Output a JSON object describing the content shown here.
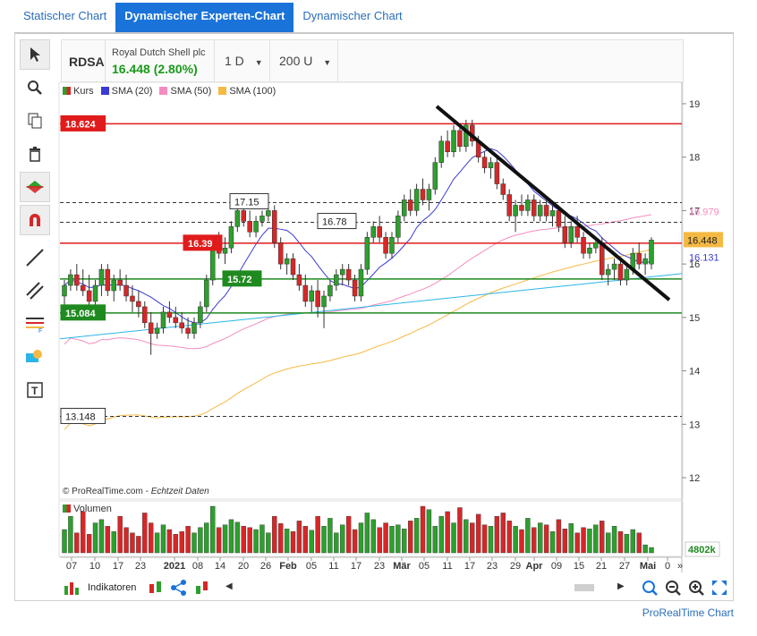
{
  "tabs": [
    {
      "label": "Statischer Chart",
      "active": false
    },
    {
      "label": "Dynamischer Experten-Chart",
      "active": true
    },
    {
      "label": "Dynamischer Chart",
      "active": false
    }
  ],
  "header": {
    "symbol": "RDSA",
    "company": "Royal Dutch Shell plc",
    "price_change": "16.448 (2.80%)",
    "interval": "1 D",
    "units": "200 U"
  },
  "legend": [
    {
      "label": "Kurs",
      "color": "#2ca02c"
    },
    {
      "label": "SMA (20)",
      "color": "#3a3ad4"
    },
    {
      "label": "SMA (50)",
      "color": "#f48cc0"
    },
    {
      "label": "SMA (100)",
      "color": "#f5b942"
    }
  ],
  "credit": {
    "text": "© ProRealTime.com - ",
    "italic": "Echtzeit Daten"
  },
  "volume_label": "Volumen",
  "volume_value": "4802k",
  "bottom": {
    "indicators_label": "Indikatoren"
  },
  "footer": "ProRealTime Chart",
  "colors": {
    "up": "#2ca02c",
    "down": "#d62728",
    "sma20": "#3a3ad4",
    "sma50": "#f48cc0",
    "sma100": "#f5b942",
    "trend": "#2bb5e8"
  },
  "chart_data": {
    "type": "candlestick",
    "y_ticks": [
      12,
      13,
      14,
      15,
      16,
      17,
      18,
      19
    ],
    "x_ticks": [
      "07",
      "10",
      "17",
      "23",
      "2021",
      "08",
      "14",
      "20",
      "26",
      "Feb",
      "05",
      "11",
      "17",
      "23",
      "Mär",
      "05",
      "11",
      "17",
      "23",
      "29",
      "Apr",
      "09",
      "15",
      "21",
      "27",
      "Mai",
      "0"
    ],
    "horizontal_levels": [
      {
        "label": "18.624",
        "value": 18.624,
        "style": "solid",
        "color": "#e01b1b"
      },
      {
        "label": "17.15",
        "value": 17.15,
        "style": "dashed",
        "color": "#333333"
      },
      {
        "label": "16.78",
        "value": 16.78,
        "style": "dashed",
        "color": "#333333"
      },
      {
        "label": "16.39",
        "value": 16.39,
        "style": "solid",
        "color": "#e01b1b"
      },
      {
        "label": "15.72",
        "value": 15.72,
        "style": "solid",
        "color": "#1f8a1f"
      },
      {
        "label": "15.084",
        "value": 15.084,
        "style": "solid",
        "color": "#1f8a1f"
      },
      {
        "label": "13.148",
        "value": 13.148,
        "style": "dashed",
        "color": "#333333"
      }
    ],
    "right_labels": [
      {
        "label": "16.979",
        "value": 16.979
      },
      {
        "label": "16.448",
        "value": 16.448
      },
      {
        "label": "16.131",
        "value": 16.131
      }
    ],
    "candles": [
      [
        15.4,
        15.7,
        15.2,
        15.6
      ],
      [
        15.6,
        15.9,
        15.5,
        15.8
      ],
      [
        15.8,
        16.0,
        15.5,
        15.6
      ],
      [
        15.6,
        15.9,
        15.4,
        15.5
      ],
      [
        15.5,
        15.8,
        15.2,
        15.3
      ],
      [
        15.3,
        15.7,
        15.2,
        15.6
      ],
      [
        15.6,
        16.0,
        15.4,
        15.9
      ],
      [
        15.9,
        16.0,
        15.4,
        15.5
      ],
      [
        15.5,
        15.8,
        15.3,
        15.7
      ],
      [
        15.7,
        15.9,
        15.5,
        15.6
      ],
      [
        15.6,
        15.8,
        15.3,
        15.4
      ],
      [
        15.4,
        15.6,
        15.1,
        15.3
      ],
      [
        15.3,
        15.5,
        15.0,
        15.2
      ],
      [
        15.2,
        15.3,
        14.8,
        14.9
      ],
      [
        14.9,
        15.1,
        14.3,
        14.7
      ],
      [
        14.7,
        14.9,
        14.6,
        14.8
      ],
      [
        14.8,
        15.2,
        14.7,
        15.1
      ],
      [
        15.1,
        15.3,
        14.9,
        15.0
      ],
      [
        15.0,
        15.2,
        14.8,
        14.9
      ],
      [
        14.9,
        15.1,
        14.7,
        14.8
      ],
      [
        14.8,
        15.0,
        14.6,
        14.7
      ],
      [
        14.7,
        15.0,
        14.6,
        14.9
      ],
      [
        14.9,
        15.3,
        14.8,
        15.2
      ],
      [
        15.2,
        15.8,
        15.1,
        15.7
      ],
      [
        15.7,
        16.5,
        15.6,
        16.4
      ],
      [
        16.4,
        16.6,
        16.1,
        16.2
      ],
      [
        16.2,
        16.5,
        16.0,
        16.3
      ],
      [
        16.3,
        16.8,
        16.2,
        16.7
      ],
      [
        16.7,
        17.2,
        16.6,
        17.0
      ],
      [
        17.0,
        17.2,
        16.7,
        16.8
      ],
      [
        16.8,
        17.0,
        16.5,
        16.6
      ],
      [
        16.6,
        16.9,
        16.5,
        16.8
      ],
      [
        16.8,
        17.0,
        16.7,
        16.9
      ],
      [
        16.9,
        17.1,
        16.8,
        17.0
      ],
      [
        17.0,
        17.1,
        16.3,
        16.4
      ],
      [
        16.4,
        16.5,
        15.9,
        16.0
      ],
      [
        16.0,
        16.2,
        15.8,
        16.1
      ],
      [
        16.1,
        16.2,
        15.7,
        15.8
      ],
      [
        15.8,
        16.0,
        15.5,
        15.6
      ],
      [
        15.6,
        15.8,
        15.2,
        15.3
      ],
      [
        15.3,
        15.6,
        15.1,
        15.5
      ],
      [
        15.5,
        15.7,
        15.0,
        15.2
      ],
      [
        15.2,
        15.5,
        14.8,
        15.4
      ],
      [
        15.4,
        15.7,
        15.3,
        15.6
      ],
      [
        15.6,
        15.9,
        15.5,
        15.8
      ],
      [
        15.8,
        16.0,
        15.6,
        15.9
      ],
      [
        15.9,
        16.0,
        15.6,
        15.7
      ],
      [
        15.7,
        15.8,
        15.3,
        15.4
      ],
      [
        15.4,
        16.0,
        15.3,
        15.9
      ],
      [
        15.9,
        16.6,
        15.8,
        16.5
      ],
      [
        16.5,
        16.8,
        16.4,
        16.7
      ],
      [
        16.7,
        16.9,
        16.4,
        16.5
      ],
      [
        16.5,
        16.6,
        16.1,
        16.2
      ],
      [
        16.2,
        16.6,
        16.1,
        16.5
      ],
      [
        16.5,
        17.0,
        16.4,
        16.9
      ],
      [
        16.9,
        17.3,
        16.8,
        17.2
      ],
      [
        17.2,
        17.4,
        16.9,
        17.0
      ],
      [
        17.0,
        17.5,
        16.9,
        17.4
      ],
      [
        17.4,
        17.6,
        17.1,
        17.2
      ],
      [
        17.2,
        17.5,
        17.0,
        17.4
      ],
      [
        17.4,
        18.0,
        17.3,
        17.9
      ],
      [
        17.9,
        18.4,
        17.8,
        18.3
      ],
      [
        18.3,
        18.5,
        18.0,
        18.1
      ],
      [
        18.1,
        18.6,
        18.0,
        18.5
      ],
      [
        18.5,
        18.6,
        18.1,
        18.2
      ],
      [
        18.2,
        18.7,
        18.1,
        18.6
      ],
      [
        18.6,
        18.7,
        18.2,
        18.3
      ],
      [
        18.3,
        18.4,
        17.9,
        18.0
      ],
      [
        18.0,
        18.1,
        17.7,
        17.8
      ],
      [
        17.8,
        18.0,
        17.6,
        17.9
      ],
      [
        17.9,
        18.0,
        17.4,
        17.5
      ],
      [
        17.5,
        17.6,
        17.2,
        17.3
      ],
      [
        17.3,
        17.4,
        16.8,
        16.9
      ],
      [
        16.9,
        17.2,
        16.6,
        17.1
      ],
      [
        17.1,
        17.3,
        16.9,
        17.0
      ],
      [
        17.0,
        17.3,
        16.9,
        17.2
      ],
      [
        17.2,
        17.3,
        16.8,
        16.9
      ],
      [
        16.9,
        17.2,
        16.8,
        17.1
      ],
      [
        17.1,
        17.2,
        16.8,
        16.9
      ],
      [
        16.9,
        17.1,
        16.7,
        17.0
      ],
      [
        17.0,
        17.1,
        16.6,
        16.7
      ],
      [
        16.7,
        16.9,
        16.3,
        16.4
      ],
      [
        16.4,
        16.8,
        16.3,
        16.7
      ],
      [
        16.7,
        16.9,
        16.4,
        16.5
      ],
      [
        16.5,
        16.6,
        16.1,
        16.2
      ],
      [
        16.2,
        16.4,
        16.1,
        16.3
      ],
      [
        16.3,
        16.5,
        16.2,
        16.4
      ],
      [
        16.4,
        16.5,
        15.7,
        15.8
      ],
      [
        15.8,
        16.0,
        15.6,
        15.9
      ],
      [
        15.9,
        16.1,
        15.7,
        16.0
      ],
      [
        16.0,
        16.1,
        15.6,
        15.7
      ],
      [
        15.7,
        16.0,
        15.6,
        15.9
      ],
      [
        15.9,
        16.3,
        15.8,
        16.2
      ],
      [
        16.2,
        16.4,
        15.9,
        16.0
      ],
      [
        16.0,
        16.2,
        15.8,
        16.1
      ],
      [
        16.0,
        16.5,
        15.9,
        16.448
      ]
    ],
    "volume": [
      35,
      55,
      30,
      62,
      28,
      45,
      50,
      40,
      32,
      55,
      38,
      30,
      25,
      60,
      45,
      30,
      42,
      35,
      28,
      32,
      40,
      30,
      38,
      45,
      70,
      38,
      42,
      50,
      46,
      40,
      38,
      35,
      42,
      30,
      55,
      44,
      36,
      32,
      48,
      40,
      34,
      55,
      40,
      52,
      30,
      42,
      55,
      35,
      45,
      60,
      50,
      38,
      45,
      40,
      42,
      36,
      48,
      52,
      70,
      65,
      40,
      55,
      62,
      45,
      68,
      50,
      45,
      58,
      42,
      40,
      55,
      60,
      48,
      40,
      35,
      52,
      38,
      45,
      42,
      32,
      50,
      36,
      44,
      30,
      38,
      36,
      42,
      48,
      30,
      40,
      32,
      28,
      35,
      30,
      12,
      8
    ]
  }
}
